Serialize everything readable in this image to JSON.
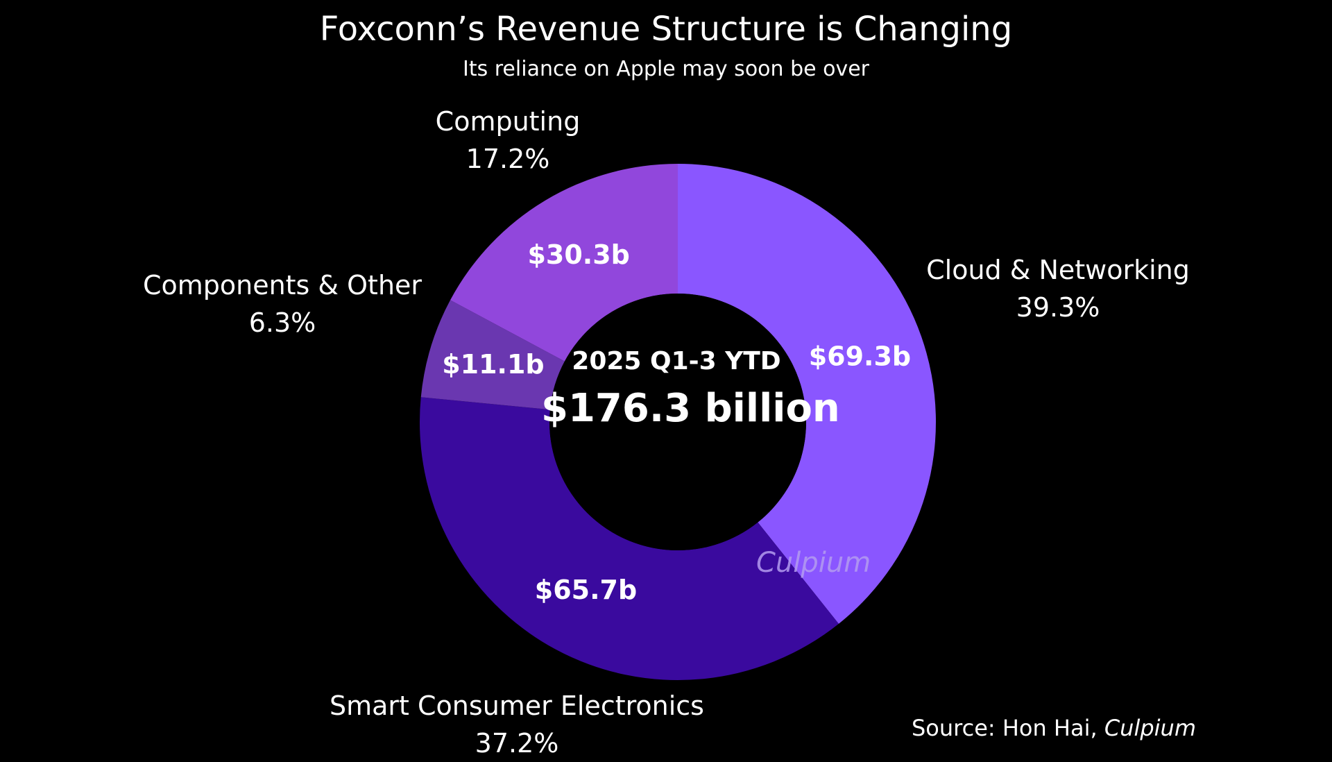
{
  "title": "Foxconn’s Revenue Structure is Changing",
  "subtitle": "Its reliance on Apple may soon be over",
  "center": {
    "period": "2025 Q1-3 YTD",
    "total": "$176.3 billion"
  },
  "watermark": "Culpium",
  "source": {
    "prefix": "Source: Hon Hai,",
    "italic": "Culpium"
  },
  "chart_data": {
    "type": "pie",
    "donut": true,
    "start_angle_deg": 0,
    "direction": "clockwise",
    "unit": "USD billions",
    "slices": [
      {
        "name": "Cloud & Networking",
        "value": 69.3,
        "value_label": "$69.3b",
        "percent": 39.3,
        "percent_label": "39.3%",
        "color": "#8a56ff"
      },
      {
        "name": "Smart Consumer Electronics",
        "value": 65.7,
        "value_label": "$65.7b",
        "percent": 37.2,
        "percent_label": "37.2%",
        "color": "#3a0a9e"
      },
      {
        "name": "Components & Other",
        "value": 11.1,
        "value_label": "$11.1b",
        "percent": 6.3,
        "percent_label": "6.3%",
        "color": "#6a37b0"
      },
      {
        "name": "Computing",
        "value": 30.3,
        "value_label": "$30.3b",
        "percent": 17.2,
        "percent_label": "17.2%",
        "color": "#9147dc"
      }
    ],
    "total_label": "$176.3 billion"
  }
}
